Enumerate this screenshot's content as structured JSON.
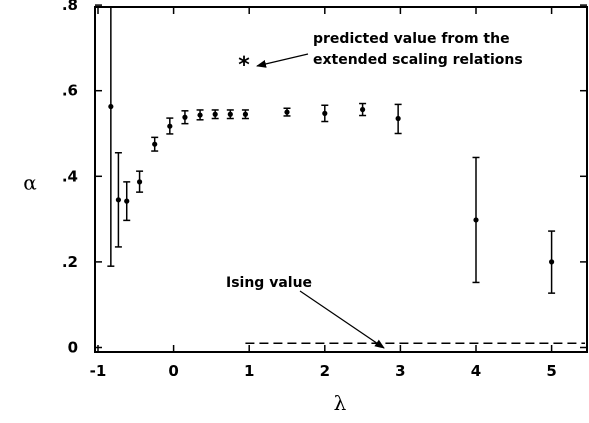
{
  "chart_data": {
    "type": "scatter",
    "title": "",
    "xlabel": "λ",
    "ylabel": "α",
    "xlim": [
      -1.1,
      5.5
    ],
    "ylim": [
      -0.02,
      0.8
    ],
    "xticks": [
      -1,
      0,
      1,
      2,
      3,
      4,
      5
    ],
    "xtick_labels": [
      "-1",
      "0",
      "1",
      "2",
      "3",
      "4",
      "5"
    ],
    "yticks": [
      0,
      0.2,
      0.4,
      0.6,
      0.8
    ],
    "ytick_labels": [
      "0",
      ".2",
      ".4",
      ".6",
      ".8"
    ],
    "grid": false,
    "series": [
      {
        "points": [
          {
            "x": -0.83,
            "y": 0.563,
            "ylow": 0.19,
            "yhigh": 0.8
          },
          {
            "x": -0.73,
            "y": 0.345,
            "ylow": 0.235,
            "yhigh": 0.455
          },
          {
            "x": -0.62,
            "y": 0.342,
            "ylow": 0.297,
            "yhigh": 0.387
          },
          {
            "x": -0.45,
            "y": 0.387,
            "ylow": 0.363,
            "yhigh": 0.412
          },
          {
            "x": -0.25,
            "y": 0.475,
            "ylow": 0.459,
            "yhigh": 0.491
          },
          {
            "x": -0.05,
            "y": 0.517,
            "ylow": 0.499,
            "yhigh": 0.536
          },
          {
            "x": 0.15,
            "y": 0.538,
            "ylow": 0.523,
            "yhigh": 0.553
          },
          {
            "x": 0.35,
            "y": 0.543,
            "ylow": 0.532,
            "yhigh": 0.555
          },
          {
            "x": 0.55,
            "y": 0.545,
            "ylow": 0.535,
            "yhigh": 0.555
          },
          {
            "x": 0.75,
            "y": 0.545,
            "ylow": 0.535,
            "yhigh": 0.555
          },
          {
            "x": 0.95,
            "y": 0.545,
            "ylow": 0.535,
            "yhigh": 0.555
          },
          {
            "x": 1.5,
            "y": 0.55,
            "ylow": 0.541,
            "yhigh": 0.559
          },
          {
            "x": 2.0,
            "y": 0.547,
            "ylow": 0.528,
            "yhigh": 0.566
          },
          {
            "x": 2.5,
            "y": 0.556,
            "ylow": 0.542,
            "yhigh": 0.57
          },
          {
            "x": 2.97,
            "y": 0.535,
            "ylow": 0.5,
            "yhigh": 0.568
          },
          {
            "x": 4.0,
            "y": 0.298,
            "ylow": 0.152,
            "yhigh": 0.444
          },
          {
            "x": 5.0,
            "y": 0.2,
            "ylow": 0.127,
            "yhigh": 0.272
          }
        ]
      }
    ],
    "predicted_value": {
      "x": 0.95,
      "y": 0.675,
      "symbol": "*"
    },
    "ising_value": {
      "y": 0.01,
      "x_start": 0.95,
      "x_end": 5.5,
      "style": "dashed"
    },
    "annotations": [
      {
        "text_lines": [
          "predicted value from the",
          "extended scaling relations"
        ]
      },
      {
        "text_lines": [
          "Ising value"
        ]
      }
    ]
  }
}
